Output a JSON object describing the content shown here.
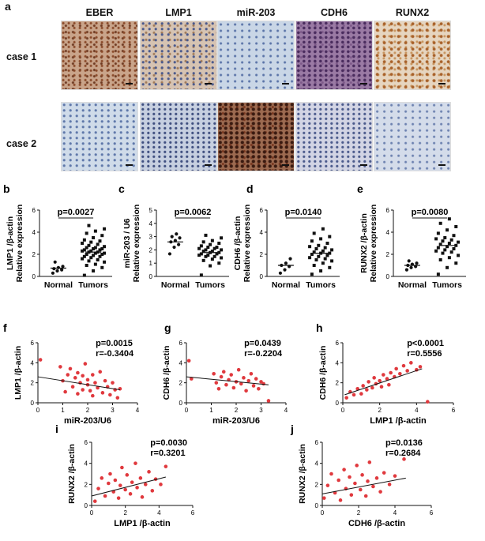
{
  "panel_a": {
    "label": "a",
    "columns": [
      "EBER",
      "LMP1",
      "miR-203",
      "CDH6",
      "RUNX2"
    ],
    "rows": [
      "case 1",
      "case 2"
    ]
  },
  "chart_data": [
    {
      "id": "b",
      "type": "scatter",
      "panel_label": "b",
      "ylabel": "LMP1 /β-actin\nRelative expression",
      "categories": [
        "Normal",
        "Tumors"
      ],
      "ylim": [
        0,
        6
      ],
      "yticks": [
        0,
        2,
        4,
        6
      ],
      "annotation": "p=0.0027",
      "series": [
        {
          "category": "Normal",
          "values": [
            0.3,
            0.5,
            0.6,
            0.7,
            0.8,
            0.9,
            1.3
          ],
          "mean": 0.75
        },
        {
          "category": "Tumors",
          "values": [
            0.1,
            0.5,
            0.8,
            1.0,
            1.1,
            1.3,
            1.4,
            1.5,
            1.6,
            1.7,
            1.8,
            1.8,
            1.9,
            2.0,
            2.0,
            2.1,
            2.1,
            2.2,
            2.2,
            2.3,
            2.3,
            2.4,
            2.4,
            2.5,
            2.5,
            2.6,
            2.6,
            2.7,
            2.8,
            2.9,
            3.0,
            3.1,
            3.2,
            3.3,
            3.5,
            3.7,
            3.9,
            4.1,
            4.3,
            4.6
          ],
          "mean": 2.2
        }
      ]
    },
    {
      "id": "c",
      "type": "scatter",
      "panel_label": "c",
      "ylabel": "miR-203 / U6\nRelative expression",
      "categories": [
        "Normal",
        "Tumors"
      ],
      "ylim": [
        0,
        5
      ],
      "yticks": [
        0,
        1,
        2,
        3,
        4,
        5
      ],
      "annotation": "p=0.0062",
      "series": [
        {
          "category": "Normal",
          "values": [
            1.7,
            2.2,
            2.4,
            2.6,
            2.7,
            2.9,
            3.0,
            3.2
          ],
          "mean": 2.6
        },
        {
          "category": "Tumors",
          "values": [
            0.1,
            0.8,
            1.0,
            1.2,
            1.3,
            1.4,
            1.5,
            1.5,
            1.6,
            1.6,
            1.7,
            1.7,
            1.8,
            1.8,
            1.9,
            1.9,
            2.0,
            2.0,
            2.1,
            2.1,
            2.2,
            2.2,
            2.3,
            2.4,
            2.5,
            2.6,
            2.7,
            2.9,
            3.1
          ],
          "mean": 1.8
        }
      ]
    },
    {
      "id": "d",
      "type": "scatter",
      "panel_label": "d",
      "ylabel": "CDH6 /β-actin\nRelative expression",
      "categories": [
        "Normal",
        "Tumors"
      ],
      "ylim": [
        0,
        6
      ],
      "yticks": [
        0,
        2,
        4,
        6
      ],
      "annotation": "p=0.0140",
      "series": [
        {
          "category": "Normal",
          "values": [
            0.3,
            0.6,
            0.9,
            1.0,
            1.2,
            1.6
          ],
          "mean": 1.0
        },
        {
          "category": "Tumors",
          "values": [
            0.2,
            0.5,
            0.8,
            1.0,
            1.2,
            1.4,
            1.5,
            1.6,
            1.7,
            1.8,
            1.9,
            2.0,
            2.1,
            2.1,
            2.2,
            2.3,
            2.4,
            2.5,
            2.6,
            2.7,
            2.8,
            3.0,
            3.2,
            3.4,
            3.6,
            3.9,
            4.3
          ],
          "mean": 2.1
        }
      ]
    },
    {
      "id": "e",
      "type": "scatter",
      "panel_label": "e",
      "ylabel": "RUNX2 /β-actin\nRelative expression",
      "categories": [
        "Normal",
        "Tumors"
      ],
      "ylim": [
        0,
        6
      ],
      "yticks": [
        0,
        2,
        4,
        6
      ],
      "annotation": "p=0.0080",
      "series": [
        {
          "category": "Normal",
          "values": [
            0.6,
            0.8,
            0.9,
            1.0,
            1.1,
            1.2,
            1.4
          ],
          "mean": 1.0
        },
        {
          "category": "Tumors",
          "values": [
            0.2,
            0.8,
            1.2,
            1.5,
            1.7,
            1.9,
            2.1,
            2.2,
            2.3,
            2.4,
            2.5,
            2.6,
            2.7,
            2.8,
            2.9,
            3.0,
            3.1,
            3.2,
            3.3,
            3.4,
            3.5,
            3.7,
            3.9,
            4.2,
            4.5,
            4.8,
            5.2
          ],
          "mean": 2.8
        }
      ]
    },
    {
      "id": "f",
      "type": "scatter",
      "panel_label": "f",
      "xlabel": "miR-203/U6",
      "ylabel": "LMP1 /β-actin",
      "xlim": [
        0,
        4
      ],
      "ylim": [
        0,
        6
      ],
      "xticks": [
        0,
        1,
        2,
        3,
        4
      ],
      "yticks": [
        0,
        2,
        4,
        6
      ],
      "annotation": [
        "p=0.0015",
        "r=-0.3404"
      ],
      "fit": [
        [
          0,
          2.6
        ],
        [
          3.3,
          1.3
        ]
      ],
      "points": [
        [
          0.1,
          4.3
        ],
        [
          0.9,
          3.6
        ],
        [
          1.0,
          2.2
        ],
        [
          1.1,
          1.1
        ],
        [
          1.2,
          2.8
        ],
        [
          1.3,
          3.4
        ],
        [
          1.4,
          1.6
        ],
        [
          1.5,
          2.5
        ],
        [
          1.6,
          0.9
        ],
        [
          1.6,
          3.0
        ],
        [
          1.7,
          2.0
        ],
        [
          1.8,
          1.3
        ],
        [
          1.8,
          2.7
        ],
        [
          1.9,
          3.9
        ],
        [
          2.0,
          1.8
        ],
        [
          2.0,
          2.3
        ],
        [
          2.1,
          1.2
        ],
        [
          2.2,
          2.8
        ],
        [
          2.2,
          0.7
        ],
        [
          2.3,
          2.0
        ],
        [
          2.4,
          1.5
        ],
        [
          2.5,
          3.1
        ],
        [
          2.6,
          1.0
        ],
        [
          2.7,
          2.2
        ],
        [
          2.8,
          1.6
        ],
        [
          2.9,
          0.8
        ],
        [
          3.0,
          2.0
        ],
        [
          3.1,
          1.3
        ],
        [
          3.2,
          0.5
        ],
        [
          3.3,
          1.4
        ]
      ]
    },
    {
      "id": "g",
      "type": "scatter",
      "panel_label": "g",
      "xlabel": "miR-203/U6",
      "ylabel": "CDH6 /β-actin",
      "xlim": [
        0,
        4
      ],
      "ylim": [
        0,
        6
      ],
      "xticks": [
        0,
        1,
        2,
        3,
        4
      ],
      "yticks": [
        0,
        2,
        4,
        6
      ],
      "annotation": [
        "p=0.0439",
        "r=-0.2204"
      ],
      "fit": [
        [
          0,
          2.6
        ],
        [
          3.3,
          1.8
        ]
      ],
      "points": [
        [
          0.1,
          4.2
        ],
        [
          0.2,
          2.4
        ],
        [
          1.1,
          2.9
        ],
        [
          1.2,
          2.0
        ],
        [
          1.3,
          1.4
        ],
        [
          1.4,
          2.6
        ],
        [
          1.5,
          3.1
        ],
        [
          1.6,
          1.8
        ],
        [
          1.7,
          2.3
        ],
        [
          1.8,
          2.8
        ],
        [
          1.9,
          1.5
        ],
        [
          2.0,
          2.1
        ],
        [
          2.1,
          3.3
        ],
        [
          2.2,
          1.9
        ],
        [
          2.3,
          2.5
        ],
        [
          2.4,
          1.2
        ],
        [
          2.5,
          2.2
        ],
        [
          2.6,
          2.9
        ],
        [
          2.7,
          1.7
        ],
        [
          2.8,
          2.4
        ],
        [
          2.9,
          1.4
        ],
        [
          3.0,
          2.1
        ],
        [
          3.1,
          1.9
        ],
        [
          3.3,
          0.2
        ]
      ]
    },
    {
      "id": "h",
      "type": "scatter",
      "panel_label": "h",
      "xlabel": "LMP1 /β-actin",
      "ylabel": "CDH6 /β-actin",
      "xlim": [
        0,
        6
      ],
      "ylim": [
        0,
        6
      ],
      "xticks": [
        0,
        2,
        4,
        6
      ],
      "yticks": [
        0,
        2,
        4,
        6
      ],
      "annotation": [
        "p<0.0001",
        "r=0.5556"
      ],
      "fit": [
        [
          0.1,
          0.8
        ],
        [
          4.3,
          3.4
        ]
      ],
      "points": [
        [
          0.2,
          0.5
        ],
        [
          0.4,
          1.1
        ],
        [
          0.6,
          0.8
        ],
        [
          0.8,
          1.4
        ],
        [
          1.0,
          0.9
        ],
        [
          1.1,
          1.7
        ],
        [
          1.3,
          1.3
        ],
        [
          1.4,
          2.1
        ],
        [
          1.6,
          1.5
        ],
        [
          1.7,
          2.5
        ],
        [
          1.8,
          1.9
        ],
        [
          2.0,
          2.2
        ],
        [
          2.1,
          1.6
        ],
        [
          2.2,
          2.8
        ],
        [
          2.4,
          2.4
        ],
        [
          2.5,
          1.8
        ],
        [
          2.6,
          3.0
        ],
        [
          2.8,
          2.6
        ],
        [
          2.9,
          3.4
        ],
        [
          3.1,
          2.9
        ],
        [
          3.3,
          3.7
        ],
        [
          3.5,
          3.2
        ],
        [
          3.7,
          4.0
        ],
        [
          4.0,
          3.3
        ],
        [
          4.2,
          3.6
        ],
        [
          4.6,
          0.1
        ]
      ]
    },
    {
      "id": "i",
      "type": "scatter",
      "panel_label": "i",
      "xlabel": "LMP1 /β-actin",
      "ylabel": "RUNX2 /β-actin",
      "xlim": [
        0,
        6
      ],
      "ylim": [
        0,
        6
      ],
      "xticks": [
        0,
        2,
        4,
        6
      ],
      "yticks": [
        0,
        2,
        4,
        6
      ],
      "annotation": [
        "p=0.0030",
        "r=0.3201"
      ],
      "fit": [
        [
          0,
          0.9
        ],
        [
          4.4,
          2.7
        ]
      ],
      "points": [
        [
          0.2,
          0.4
        ],
        [
          0.4,
          1.6
        ],
        [
          0.6,
          2.6
        ],
        [
          0.8,
          0.9
        ],
        [
          1.0,
          2.1
        ],
        [
          1.1,
          3.0
        ],
        [
          1.3,
          1.3
        ],
        [
          1.4,
          2.4
        ],
        [
          1.6,
          0.7
        ],
        [
          1.7,
          1.9
        ],
        [
          1.8,
          3.6
        ],
        [
          2.0,
          1.5
        ],
        [
          2.1,
          2.9
        ],
        [
          2.3,
          1.1
        ],
        [
          2.4,
          2.2
        ],
        [
          2.6,
          4.0
        ],
        [
          2.7,
          1.7
        ],
        [
          2.9,
          2.6
        ],
        [
          3.0,
          0.8
        ],
        [
          3.2,
          2.0
        ],
        [
          3.4,
          3.2
        ],
        [
          3.6,
          1.4
        ],
        [
          3.8,
          2.5
        ],
        [
          4.1,
          2.0
        ],
        [
          4.4,
          3.7
        ]
      ]
    },
    {
      "id": "j",
      "type": "scatter",
      "panel_label": "j",
      "xlabel": "CDH6 /β-actin",
      "ylabel": "RUNX2 /β-actin",
      "xlim": [
        0,
        6
      ],
      "ylim": [
        0,
        6
      ],
      "xticks": [
        0,
        2,
        4,
        6
      ],
      "yticks": [
        0,
        2,
        4,
        6
      ],
      "annotation": [
        "p=0.0136",
        "r=0.2684"
      ],
      "fit": [
        [
          0,
          1.1
        ],
        [
          4.6,
          2.6
        ]
      ],
      "points": [
        [
          0.1,
          0.7
        ],
        [
          0.3,
          1.9
        ],
        [
          0.5,
          3.0
        ],
        [
          0.7,
          1.2
        ],
        [
          0.9,
          2.4
        ],
        [
          1.0,
          0.5
        ],
        [
          1.2,
          3.4
        ],
        [
          1.3,
          1.6
        ],
        [
          1.5,
          2.7
        ],
        [
          1.6,
          1.0
        ],
        [
          1.8,
          2.1
        ],
        [
          1.9,
          3.8
        ],
        [
          2.1,
          1.5
        ],
        [
          2.2,
          2.9
        ],
        [
          2.4,
          0.9
        ],
        [
          2.5,
          2.3
        ],
        [
          2.6,
          4.1
        ],
        [
          2.8,
          1.8
        ],
        [
          3.0,
          2.6
        ],
        [
          3.2,
          1.3
        ],
        [
          3.4,
          3.1
        ],
        [
          3.7,
          2.0
        ],
        [
          4.0,
          2.8
        ],
        [
          4.5,
          4.4
        ]
      ]
    }
  ]
}
